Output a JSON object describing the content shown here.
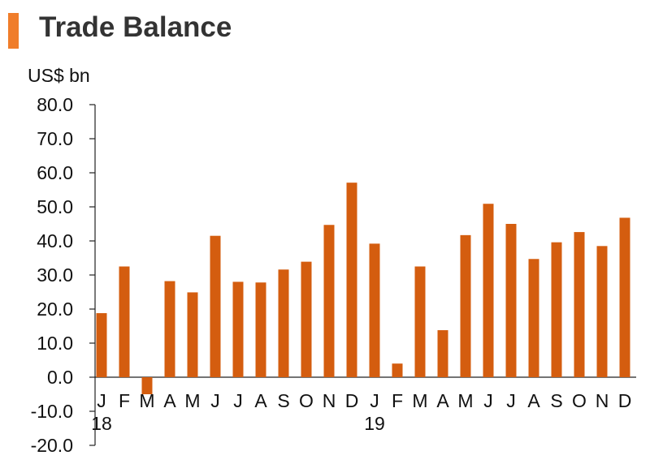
{
  "title": "Trade Balance",
  "colors": {
    "accent": "#f07d2a",
    "bar": "#d45d0f",
    "axis": "#222222"
  },
  "chart_data": {
    "type": "bar",
    "title": "Trade Balance",
    "ylabel": "US$ bn",
    "xlabel": "",
    "ylim": [
      -20,
      80
    ],
    "yticks": [
      "80.0",
      "70.0",
      "60.0",
      "50.0",
      "40.0",
      "30.0",
      "20.0",
      "10.0",
      "0.0",
      "-10.0",
      "-20.0"
    ],
    "categories": [
      "J",
      "F",
      "M",
      "A",
      "M",
      "J",
      "J",
      "A",
      "S",
      "O",
      "N",
      "D",
      "J",
      "F",
      "M",
      "A",
      "M",
      "J",
      "J",
      "A",
      "S",
      "O",
      "N",
      "D"
    ],
    "year_labels": [
      {
        "index": 0,
        "text": "18"
      },
      {
        "index": 12,
        "text": "19"
      }
    ],
    "values": [
      18.8,
      32.5,
      -5.0,
      28.2,
      24.9,
      41.5,
      28.0,
      27.8,
      31.6,
      33.9,
      44.7,
      57.1,
      39.2,
      4.0,
      32.5,
      13.8,
      41.7,
      50.9,
      45.0,
      34.7,
      39.6,
      42.6,
      38.5,
      46.8
    ],
    "grid": false,
    "legend": "none"
  }
}
